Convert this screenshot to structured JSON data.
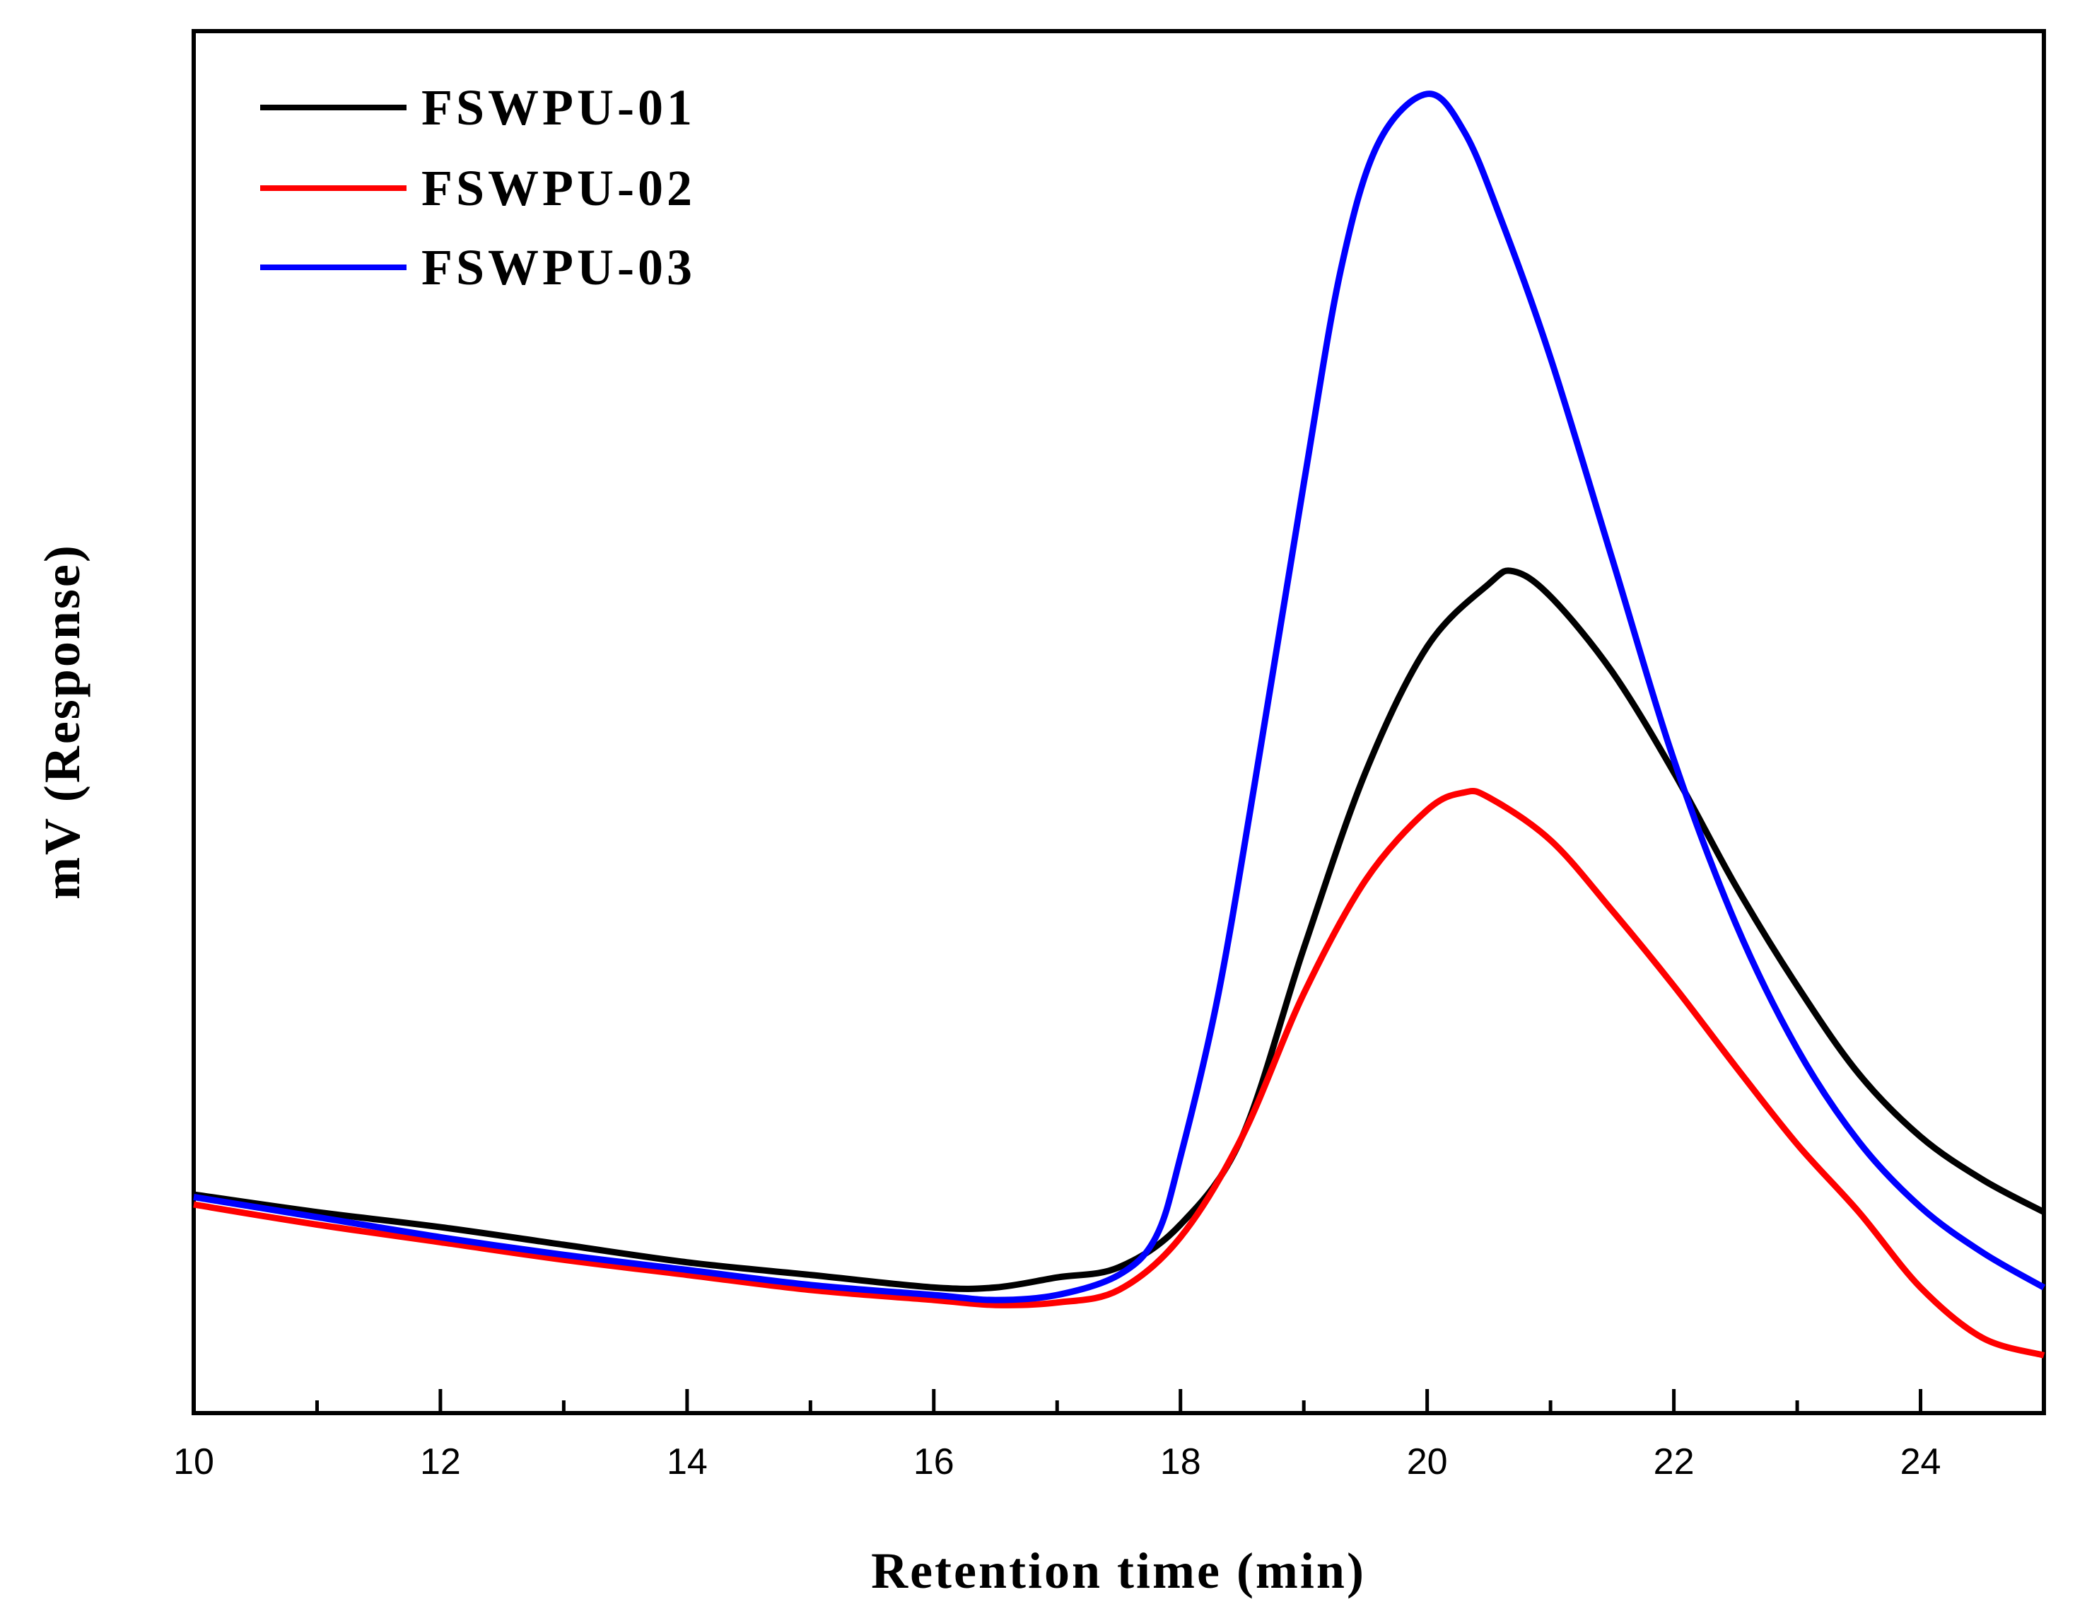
{
  "chart_data": {
    "type": "line",
    "title": "",
    "xlabel": "Retention time (min)",
    "ylabel": "mV (Response)",
    "xlim": [
      10,
      25
    ],
    "ylim": [
      -0.5,
      5.0
    ],
    "x_ticks": [
      10,
      12,
      14,
      16,
      18,
      20,
      22,
      24
    ],
    "x_ticks_minor": [
      11,
      13,
      15,
      17,
      19,
      21,
      23,
      25
    ],
    "y_ticks_shown": false,
    "legend": "top-left",
    "series": [
      {
        "name": "FSWPU-01",
        "color": "#000000",
        "x": [
          10,
          11,
          12,
          13,
          14,
          15,
          16,
          16.5,
          17,
          17.5,
          18,
          18.5,
          19,
          19.5,
          20,
          20.5,
          20.7,
          21,
          21.5,
          22,
          22.5,
          23,
          23.5,
          24,
          24.5,
          25
        ],
        "y": [
          0.37,
          0.3,
          0.24,
          0.17,
          0.1,
          0.05,
          0.0,
          0.0,
          0.04,
          0.08,
          0.25,
          0.6,
          1.35,
          2.05,
          2.55,
          2.8,
          2.85,
          2.75,
          2.45,
          2.05,
          1.6,
          1.2,
          0.85,
          0.6,
          0.43,
          0.3
        ]
      },
      {
        "name": "FSWPU-02",
        "color": "#ff0000",
        "x": [
          10,
          11,
          12,
          13,
          14,
          15,
          16,
          16.5,
          17,
          17.5,
          18,
          18.5,
          19,
          19.5,
          20,
          20.3,
          20.5,
          21,
          21.5,
          22,
          22.5,
          23,
          23.5,
          24,
          24.5,
          25
        ],
        "y": [
          0.33,
          0.25,
          0.18,
          0.11,
          0.05,
          -0.01,
          -0.05,
          -0.07,
          -0.06,
          -0.01,
          0.2,
          0.6,
          1.17,
          1.62,
          1.9,
          1.97,
          1.95,
          1.78,
          1.5,
          1.2,
          0.88,
          0.57,
          0.3,
          0.0,
          -0.2,
          -0.27
        ]
      },
      {
        "name": "FSWPU-03",
        "color": "#0000ff",
        "x": [
          10,
          11,
          12,
          13,
          14,
          15,
          16,
          16.5,
          17,
          17.5,
          17.8,
          18,
          18.3,
          18.6,
          19,
          19.3,
          19.6,
          20,
          20.3,
          20.6,
          21,
          21.5,
          22,
          22.5,
          23,
          23.5,
          24,
          24.5,
          25
        ],
        "y": [
          0.36,
          0.28,
          0.2,
          0.13,
          0.07,
          0.01,
          -0.03,
          -0.05,
          -0.03,
          0.05,
          0.2,
          0.52,
          1.15,
          2.0,
          3.2,
          4.05,
          4.55,
          4.75,
          4.6,
          4.25,
          3.7,
          2.9,
          2.1,
          1.45,
          0.95,
          0.58,
          0.32,
          0.14,
          0.0
        ]
      }
    ]
  }
}
